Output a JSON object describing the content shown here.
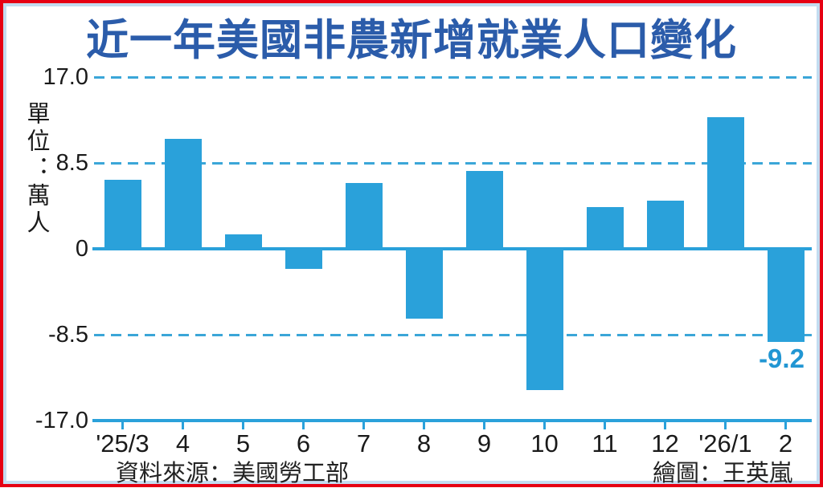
{
  "title": "近一年美國非農新增就業人口變化",
  "y_axis": {
    "unit_label": "單位：萬人",
    "ticks": [
      "17.0",
      "8.5",
      "0",
      "-8.5",
      "-17.0"
    ]
  },
  "footer": {
    "source": "資料來源：美國勞工部",
    "credit": "繪圖：王英嵐"
  },
  "colors": {
    "bar": "#2AA1DA",
    "line": "#2AA1DA",
    "grid": "#3BA6D8",
    "title": "#2B5CAA",
    "label": "#1A1A1A",
    "annotation": "#2196D3",
    "border_outer": "#E60013",
    "border_inner": "#C3DCF0"
  },
  "chart_data": {
    "type": "bar",
    "title": "近一年美國非農新增就業人口變化",
    "ylabel": "單位：萬人",
    "categories": [
      "'25/3",
      "4",
      "5",
      "6",
      "7",
      "8",
      "9",
      "10",
      "11",
      "12",
      "'26/1",
      "2"
    ],
    "values": [
      6.8,
      10.9,
      1.4,
      -2.0,
      6.5,
      -6.9,
      7.7,
      -14.0,
      4.1,
      4.8,
      13.0,
      -9.2
    ],
    "ylim": [
      -17.0,
      17.0
    ],
    "yticks": [
      17.0,
      8.5,
      0,
      -8.5,
      -17.0
    ],
    "dashed_gridlines": [
      17.0,
      8.5,
      -8.5
    ],
    "solid_lines": [
      0,
      -17.0
    ],
    "grid": "horizontal-dashed",
    "legend_position": "none",
    "data_label": {
      "index": 11,
      "text": "-9.2"
    }
  }
}
